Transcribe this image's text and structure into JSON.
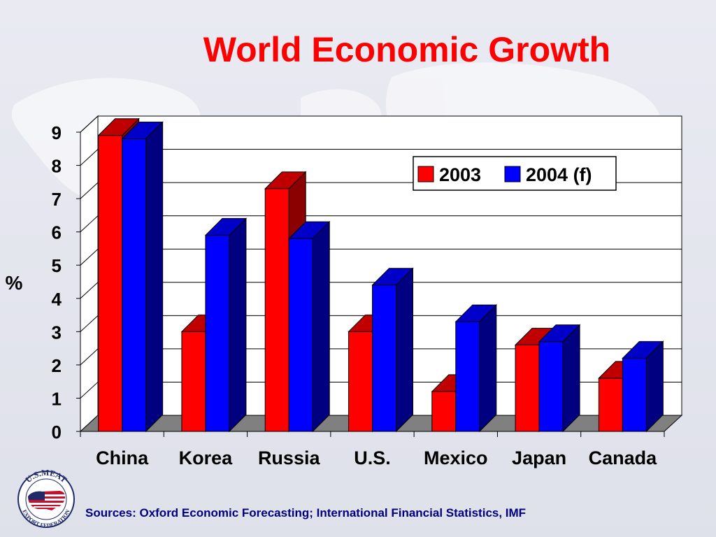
{
  "slide": {
    "title": "World Economic Growth",
    "source": "Sources: Oxford Economic Forecasting; International Financial Statistics, IMF",
    "logo": {
      "top_text": "U.S.MEAT",
      "bottom_text": "EXPORT FEDERATION"
    }
  },
  "chart_data": {
    "type": "bar",
    "title": "",
    "ylabel": "%",
    "xlabel": "",
    "ylim": [
      0,
      9
    ],
    "yticks": [
      0,
      1,
      2,
      3,
      4,
      5,
      6,
      7,
      8,
      9
    ],
    "categories": [
      "China",
      "Korea",
      "Russia",
      "U.S.",
      "Mexico",
      "Japan",
      "Canada"
    ],
    "series": [
      {
        "name": "2003",
        "values": [
          8.9,
          3.0,
          7.3,
          3.0,
          1.2,
          2.6,
          1.6
        ],
        "color": "#ff0000",
        "side_color": "#8b0000",
        "top_color": "#c00000"
      },
      {
        "name": "2004 (f)",
        "values": [
          8.8,
          5.9,
          5.8,
          4.4,
          3.3,
          2.7,
          2.2
        ],
        "color": "#0000ff",
        "side_color": "#000080",
        "top_color": "#0000c8"
      }
    ],
    "grid": true,
    "legend_position": "top-right",
    "style": "3d"
  }
}
